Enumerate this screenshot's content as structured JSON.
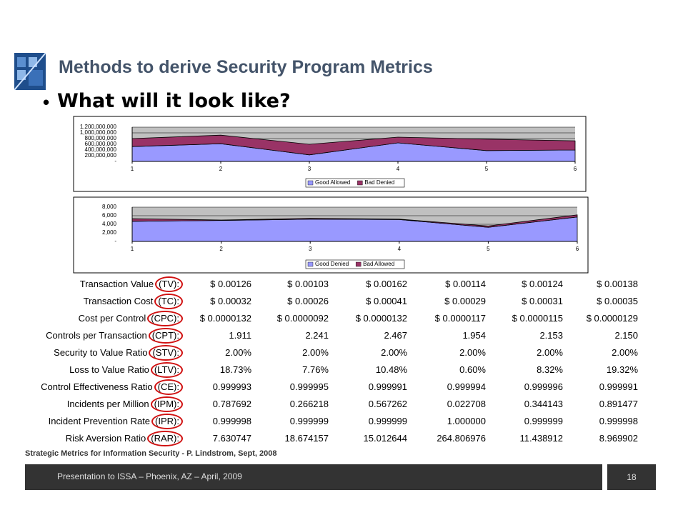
{
  "header": {
    "title": "Methods to derive Security Program Metrics",
    "bullet": "What will it look like?"
  },
  "chart_data": [
    {
      "type": "area",
      "stacked": true,
      "x": [
        1,
        2,
        3,
        4,
        5,
        6
      ],
      "xlim": [
        1,
        6
      ],
      "xticks": [
        1,
        2,
        3,
        4,
        5,
        6
      ],
      "ylim": [
        0,
        1200000000
      ],
      "yticks": [
        {
          "value": 0,
          "label": "-"
        },
        {
          "value": 200000000,
          "label": "200,000,000"
        },
        {
          "value": 400000000,
          "label": "400,000,000"
        },
        {
          "value": 600000000,
          "label": "600,000,000"
        },
        {
          "value": 800000000,
          "label": "800,000,000"
        },
        {
          "value": 1000000000,
          "label": "1,000,000,000"
        },
        {
          "value": 1200000000,
          "label": "1,200,000,000"
        }
      ],
      "grid": true,
      "series": [
        {
          "name": "Good Allowed",
          "color": "#9999ff",
          "values": [
            520000000,
            620000000,
            230000000,
            650000000,
            380000000,
            400000000
          ]
        },
        {
          "name": "Bad Denied",
          "color": "#993366",
          "values": [
            280000000,
            300000000,
            370000000,
            200000000,
            400000000,
            320000000
          ]
        }
      ]
    },
    {
      "type": "area",
      "stacked": true,
      "x": [
        1,
        2,
        3,
        4,
        5,
        6
      ],
      "xlim": [
        1,
        6
      ],
      "xticks": [
        1,
        2,
        3,
        4,
        5,
        6
      ],
      "ylim": [
        0,
        8000
      ],
      "yticks": [
        {
          "value": 0,
          "label": "-"
        },
        {
          "value": 2000,
          "label": "2,000"
        },
        {
          "value": 4000,
          "label": "4,000"
        },
        {
          "value": 6000,
          "label": "6,000"
        },
        {
          "value": 8000,
          "label": "8,000"
        }
      ],
      "grid": true,
      "series": [
        {
          "name": "Good Denied",
          "color": "#9999ff",
          "values": [
            4700,
            4900,
            5200,
            5100,
            3300,
            5700
          ]
        },
        {
          "name": "Bad Allowed",
          "color": "#993366",
          "values": [
            600,
            100,
            200,
            100,
            300,
            500
          ]
        }
      ]
    }
  ],
  "table": {
    "rows": [
      {
        "label": "Transaction Value",
        "abbr": "(TV):",
        "cells": [
          "$ 0.00126",
          "$ 0.00103",
          "$ 0.00162",
          "$ 0.00114",
          "$ 0.00124",
          "$ 0.00138"
        ]
      },
      {
        "label": "Transaction Cost",
        "abbr": "(TC):",
        "cells": [
          "$ 0.00032",
          "$ 0.00026",
          "$ 0.00041",
          "$ 0.00029",
          "$ 0.00031",
          "$ 0.00035"
        ]
      },
      {
        "label": "Cost per Control",
        "abbr": "(CPC):",
        "cells": [
          "$ 0.0000132",
          "$ 0.0000092",
          "$ 0.0000132",
          "$ 0.0000117",
          "$ 0.0000115",
          "$ 0.0000129"
        ]
      },
      {
        "label": "Controls per Transaction",
        "abbr": "(CPT):",
        "cells": [
          "1.911",
          "2.241",
          "2.467",
          "1.954",
          "2.153",
          "2.150"
        ]
      },
      {
        "label": "Security to Value Ratio",
        "abbr": "(STV):",
        "cells": [
          "2.00%",
          "2.00%",
          "2.00%",
          "2.00%",
          "2.00%",
          "2.00%"
        ]
      },
      {
        "label": "Loss to Value Ratio",
        "abbr": "(LTV):",
        "cells": [
          "18.73%",
          "7.76%",
          "10.48%",
          "0.60%",
          "8.32%",
          "19.32%"
        ]
      },
      {
        "label": "Control Effectiveness Ratio",
        "abbr": "(CE):",
        "cells": [
          "0.999993",
          "0.999995",
          "0.999991",
          "0.999994",
          "0.999996",
          "0.999991"
        ]
      },
      {
        "label": "Incidents per Million",
        "abbr": "(IPM):",
        "cells": [
          "0.787692",
          "0.266218",
          "0.567262",
          "0.022708",
          "0.344143",
          "0.891477"
        ]
      },
      {
        "label": "Incident Prevention Rate",
        "abbr": "(IPR):",
        "cells": [
          "0.999998",
          "0.999999",
          "0.999999",
          "1.000000",
          "0.999999",
          "0.999998"
        ]
      },
      {
        "label": "Risk Aversion Ratio",
        "abbr": "(RAR):",
        "cells": [
          "7.630747",
          "18.674157",
          "15.012644",
          "264.806976",
          "11.438912",
          "8.969902"
        ]
      }
    ]
  },
  "source": "Strategic Metrics for Information Security - P. Lindstrom, Sept, 2008",
  "footer": {
    "text": "Presentation to ISSA – Phoenix, AZ – April, 2009",
    "page": "18"
  }
}
